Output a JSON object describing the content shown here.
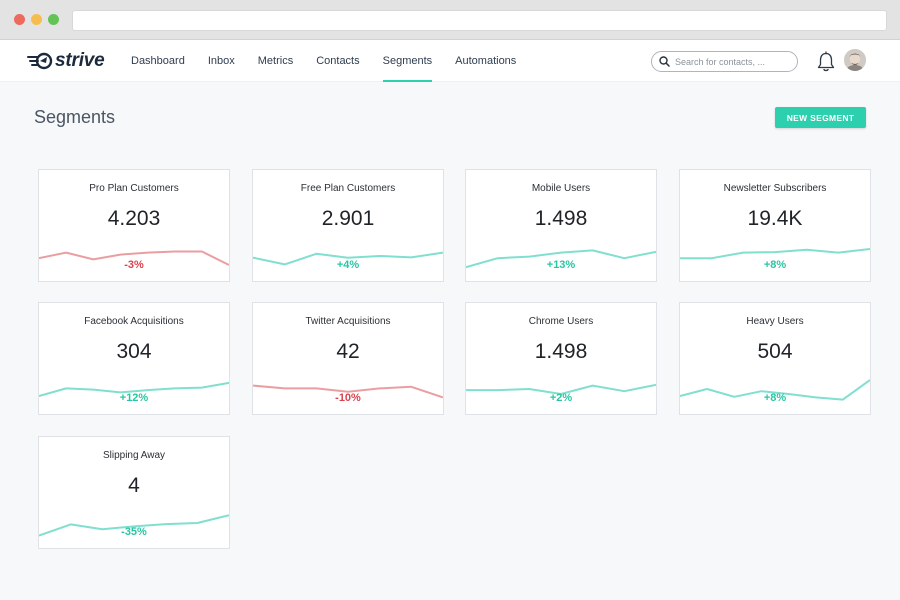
{
  "brand": {
    "name": "strive"
  },
  "nav": {
    "items": [
      {
        "label": "Dashboard",
        "active": false
      },
      {
        "label": "Inbox",
        "active": false
      },
      {
        "label": "Metrics",
        "active": false
      },
      {
        "label": "Contacts",
        "active": false
      },
      {
        "label": "Segments",
        "active": true
      },
      {
        "label": "Automations",
        "active": false
      }
    ],
    "search_placeholder": "Search for contacts, ..."
  },
  "page": {
    "title": "Segments",
    "new_button_label": "NEW SEGMENT"
  },
  "colors": {
    "accent": "#2ccfae",
    "positive": "#27c6a3",
    "negative": "#d9434f",
    "spark_positive": "#80dfcf",
    "spark_negative": "#ea9ea2"
  },
  "segments": [
    {
      "title": "Pro Plan Customers",
      "value": "4.203",
      "change": "-3%",
      "trend": "negative",
      "spark": [
        0.42,
        0.62,
        0.38,
        0.55,
        0.62,
        0.66,
        0.66,
        0.18
      ]
    },
    {
      "title": "Free Plan Customers",
      "value": "2.901",
      "change": "+4%",
      "trend": "positive",
      "spark": [
        0.44,
        0.2,
        0.58,
        0.44,
        0.5,
        0.45,
        0.62
      ]
    },
    {
      "title": "Mobile Users",
      "value": "1.498",
      "change": "+13%",
      "trend": "positive",
      "spark": [
        0.1,
        0.42,
        0.48,
        0.62,
        0.7,
        0.42,
        0.65
      ]
    },
    {
      "title": "Newsletter Subscribers",
      "value": "19.4K",
      "change": "+8%",
      "trend": "positive",
      "spark": [
        0.42,
        0.42,
        0.62,
        0.64,
        0.72,
        0.62,
        0.75
      ]
    },
    {
      "title": "Facebook Acquisitions",
      "value": "304",
      "change": "+12%",
      "trend": "positive",
      "spark": [
        0.25,
        0.52,
        0.48,
        0.38,
        0.46,
        0.52,
        0.55,
        0.72
      ]
    },
    {
      "title": "Twitter Acquisitions",
      "value": "42",
      "change": "-10%",
      "trend": "negative",
      "spark": [
        0.62,
        0.52,
        0.52,
        0.4,
        0.52,
        0.58,
        0.2
      ]
    },
    {
      "title": "Chrome Users",
      "value": "1.498",
      "change": "+2%",
      "trend": "positive",
      "spark": [
        0.46,
        0.46,
        0.5,
        0.32,
        0.62,
        0.42,
        0.65
      ]
    },
    {
      "title": "Heavy Users",
      "value": "504",
      "change": "+8%",
      "trend": "positive",
      "spark": [
        0.25,
        0.5,
        0.22,
        0.42,
        0.32,
        0.2,
        0.12,
        0.82
      ]
    },
    {
      "title": "Slipping Away",
      "value": "4",
      "change": "-35%",
      "trend": "positive",
      "spark": [
        0.05,
        0.45,
        0.28,
        0.38,
        0.46,
        0.5,
        0.78
      ]
    }
  ]
}
